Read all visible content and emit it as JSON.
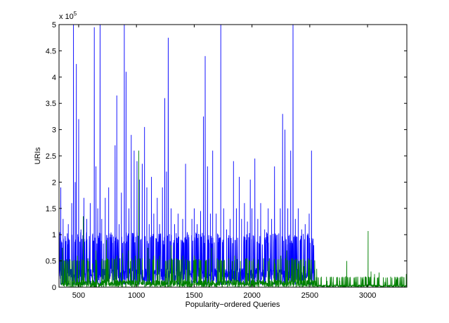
{
  "chart_data": {
    "type": "line",
    "title": "",
    "xlabel": "Popularity−ordered Queries",
    "ylabel": "URIs",
    "y_multiplier_label": "x 10",
    "y_multiplier_exponent": "5",
    "xlim": [
      330,
      3340
    ],
    "ylim": [
      0,
      5
    ],
    "x_ticks": [
      500,
      1000,
      1500,
      2000,
      2500,
      3000
    ],
    "x_tick_labels": [
      "500",
      "1000",
      "1500",
      "2000",
      "2500",
      "3000"
    ],
    "y_ticks": [
      0,
      0.5,
      1,
      1.5,
      2,
      2.5,
      3,
      3.5,
      4,
      4.5,
      5
    ],
    "y_tick_labels": [
      "0",
      "0.5",
      "1",
      "1.5",
      "2",
      "2.5",
      "3",
      "3.5",
      "4",
      "4.5",
      "5"
    ],
    "grid": false,
    "legend": "none",
    "series": [
      {
        "color": "#0000ff",
        "peaks": [
          [
            345,
            1.9
          ],
          [
            365,
            1.3
          ],
          [
            390,
            0.8
          ],
          [
            410,
            1.2
          ],
          [
            440,
            1.6
          ],
          [
            455,
            5.0
          ],
          [
            470,
            2.0
          ],
          [
            480,
            4.25
          ],
          [
            500,
            3.2
          ],
          [
            520,
            1.1
          ],
          [
            545,
            1.7
          ],
          [
            570,
            1.3
          ],
          [
            600,
            1.6
          ],
          [
            620,
            1.0
          ],
          [
            635,
            4.95
          ],
          [
            650,
            2.3
          ],
          [
            665,
            1.5
          ],
          [
            685,
            5.0
          ],
          [
            700,
            1.3
          ],
          [
            730,
            1.7
          ],
          [
            760,
            1.9
          ],
          [
            790,
            1.0
          ],
          [
            815,
            2.7
          ],
          [
            830,
            3.65
          ],
          [
            850,
            1.2
          ],
          [
            870,
            1.8
          ],
          [
            895,
            5.0
          ],
          [
            910,
            4.1
          ],
          [
            935,
            1.5
          ],
          [
            955,
            2.9
          ],
          [
            980,
            2.6
          ],
          [
            1005,
            2.4
          ],
          [
            1025,
            2.05
          ],
          [
            1050,
            2.35
          ],
          [
            1070,
            3.05
          ],
          [
            1090,
            1.9
          ],
          [
            1110,
            1.2
          ],
          [
            1130,
            2.1
          ],
          [
            1150,
            1.4
          ],
          [
            1180,
            1.7
          ],
          [
            1200,
            1.2
          ],
          [
            1225,
            1.9
          ],
          [
            1245,
            3.6
          ],
          [
            1260,
            2.2
          ],
          [
            1275,
            4.75
          ],
          [
            1300,
            1.5
          ],
          [
            1330,
            1.2
          ],
          [
            1360,
            1.4
          ],
          [
            1400,
            1.3
          ],
          [
            1425,
            2.35
          ],
          [
            1450,
            1.0
          ],
          [
            1480,
            1.3
          ],
          [
            1500,
            1.5
          ],
          [
            1525,
            1.2
          ],
          [
            1555,
            1.45
          ],
          [
            1580,
            3.25
          ],
          [
            1595,
            4.4
          ],
          [
            1615,
            2.3
          ],
          [
            1640,
            1.4
          ],
          [
            1660,
            2.6
          ],
          [
            1690,
            1.4
          ],
          [
            1710,
            1.0
          ],
          [
            1730,
            5.0
          ],
          [
            1755,
            1.5
          ],
          [
            1780,
            1.1
          ],
          [
            1810,
            1.3
          ],
          [
            1840,
            2.4
          ],
          [
            1865,
            1.5
          ],
          [
            1890,
            2.1
          ],
          [
            1910,
            1.3
          ],
          [
            1935,
            1.6
          ],
          [
            1960,
            1.25
          ],
          [
            1985,
            2.05
          ],
          [
            2000,
            1.5
          ],
          [
            2025,
            2.45
          ],
          [
            2050,
            1.3
          ],
          [
            2075,
            1.6
          ],
          [
            2110,
            1.1
          ],
          [
            2140,
            1.5
          ],
          [
            2170,
            1.3
          ],
          [
            2195,
            2.3
          ],
          [
            2220,
            1.0
          ],
          [
            2245,
            1.5
          ],
          [
            2265,
            3.3
          ],
          [
            2285,
            3.0
          ],
          [
            2310,
            1.5
          ],
          [
            2335,
            2.6
          ],
          [
            2355,
            5.0
          ],
          [
            2375,
            1.3
          ],
          [
            2400,
            1.5
          ],
          [
            2430,
            1.1
          ],
          [
            2460,
            1.2
          ],
          [
            2495,
            1.4
          ],
          [
            2515,
            2.6
          ],
          [
            2535,
            0.8
          ]
        ]
      },
      {
        "color": "#008000",
        "peaks": [
          [
            360,
            0.75
          ],
          [
            400,
            0.45
          ],
          [
            440,
            0.5
          ],
          [
            490,
            0.6
          ],
          [
            540,
            1.35
          ],
          [
            580,
            0.55
          ],
          [
            620,
            0.45
          ],
          [
            650,
            0.7
          ],
          [
            700,
            0.5
          ],
          [
            740,
            0.9
          ],
          [
            790,
            0.55
          ],
          [
            830,
            0.6
          ],
          [
            880,
            0.65
          ],
          [
            930,
            0.7
          ],
          [
            990,
            0.6
          ],
          [
            1020,
            2.6
          ],
          [
            1050,
            0.55
          ],
          [
            1100,
            0.75
          ],
          [
            1150,
            0.6
          ],
          [
            1200,
            0.6
          ],
          [
            1250,
            0.5
          ],
          [
            1300,
            0.8
          ],
          [
            1350,
            0.55
          ],
          [
            1400,
            0.6
          ],
          [
            1450,
            0.5
          ],
          [
            1500,
            0.6
          ],
          [
            1550,
            0.5
          ],
          [
            1600,
            0.5
          ],
          [
            1650,
            0.75
          ],
          [
            1700,
            0.55
          ],
          [
            1750,
            0.5
          ],
          [
            1800,
            0.55
          ],
          [
            1850,
            0.6
          ],
          [
            1900,
            0.5
          ],
          [
            1950,
            0.55
          ],
          [
            2000,
            0.5
          ],
          [
            2050,
            0.45
          ],
          [
            2100,
            0.55
          ],
          [
            2150,
            0.55
          ],
          [
            2200,
            0.45
          ],
          [
            2250,
            0.6
          ],
          [
            2300,
            0.7
          ],
          [
            2350,
            0.55
          ],
          [
            2400,
            0.45
          ],
          [
            2450,
            0.4
          ],
          [
            2500,
            0.45
          ],
          [
            2560,
            0.35
          ],
          [
            2600,
            0.2
          ],
          [
            2650,
            0.12
          ],
          [
            2700,
            0.1
          ],
          [
            2760,
            0.12
          ],
          [
            2820,
            0.5
          ],
          [
            2900,
            0.1
          ],
          [
            2960,
            0.15
          ],
          [
            3005,
            1.07
          ],
          [
            3030,
            0.3
          ],
          [
            3060,
            0.25
          ],
          [
            3100,
            0.28
          ],
          [
            3150,
            0.1
          ],
          [
            3200,
            0.2
          ],
          [
            3250,
            0.15
          ],
          [
            3300,
            0.2
          ],
          [
            3335,
            0.25
          ]
        ]
      }
    ]
  }
}
